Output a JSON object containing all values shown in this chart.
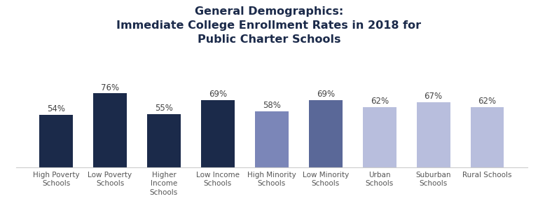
{
  "title": "General Demographics:\nImmediate College Enrollment Rates in 2018 for\nPublic Charter Schools",
  "categories": [
    "High Poverty\nSchools",
    "Low Poverty\nSchools",
    "Higher\nIncome\nSchools",
    "Low Income\nSchools",
    "High Minority\nSchools",
    "Low Minority\nSchools",
    "Urban\nSchools",
    "Suburban\nSchools",
    "Rural Schools"
  ],
  "values": [
    54,
    76,
    55,
    69,
    58,
    69,
    62,
    67,
    62
  ],
  "bar_colors": [
    "#1b2a4a",
    "#1b2a4a",
    "#1b2a4a",
    "#1b2a4a",
    "#7b86b8",
    "#5a6898",
    "#b8bedd",
    "#b8bedd",
    "#b8bedd"
  ],
  "label_color": "#444444",
  "title_color": "#1b2a4a",
  "background_color": "#ffffff",
  "ylim": [
    0,
    88
  ],
  "bar_width": 0.62,
  "title_fontsize": 11.5,
  "label_fontsize": 8.5,
  "tick_fontsize": 7.5
}
